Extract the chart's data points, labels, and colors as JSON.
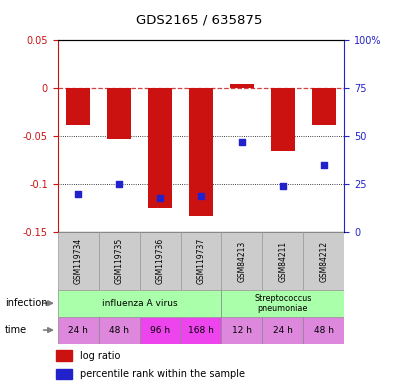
{
  "title": "GDS2165 / 635875",
  "samples": [
    "GSM119734",
    "GSM119735",
    "GSM119736",
    "GSM119737",
    "GSM84213",
    "GSM84211",
    "GSM84212"
  ],
  "log_ratio": [
    -0.038,
    -0.053,
    -0.125,
    -0.133,
    0.005,
    -0.065,
    -0.038
  ],
  "percentile_rank": [
    20,
    25,
    18,
    19,
    47,
    24,
    35
  ],
  "ylim_left": [
    -0.15,
    0.05
  ],
  "ylim_right": [
    0,
    100
  ],
  "bar_color": "#cc1111",
  "dot_color": "#2222cc",
  "bar_width": 0.6,
  "yticks_left": [
    0.05,
    0.0,
    -0.05,
    -0.1,
    -0.15
  ],
  "ytick_labels_left": [
    "0.05",
    "0",
    "-0.05",
    "-0.1",
    "-0.15"
  ],
  "yticks_right": [
    100,
    75,
    50,
    25,
    0
  ],
  "ytick_labels_right": [
    "100%",
    "75",
    "50",
    "25",
    "0"
  ],
  "time_labels": [
    "24 h",
    "48 h",
    "96 h",
    "168 h",
    "12 h",
    "24 h",
    "48 h"
  ],
  "time_colors": [
    "#dd88dd",
    "#dd88dd",
    "#ee44ee",
    "#ee44ee",
    "#dd88dd",
    "#dd88dd",
    "#dd88dd"
  ],
  "infection_labels": [
    "influenza A virus",
    "Streptococcus\npneumoniae"
  ],
  "infection_color": "#aaffaa",
  "sample_color": "#cccccc",
  "background_color": "#ffffff"
}
